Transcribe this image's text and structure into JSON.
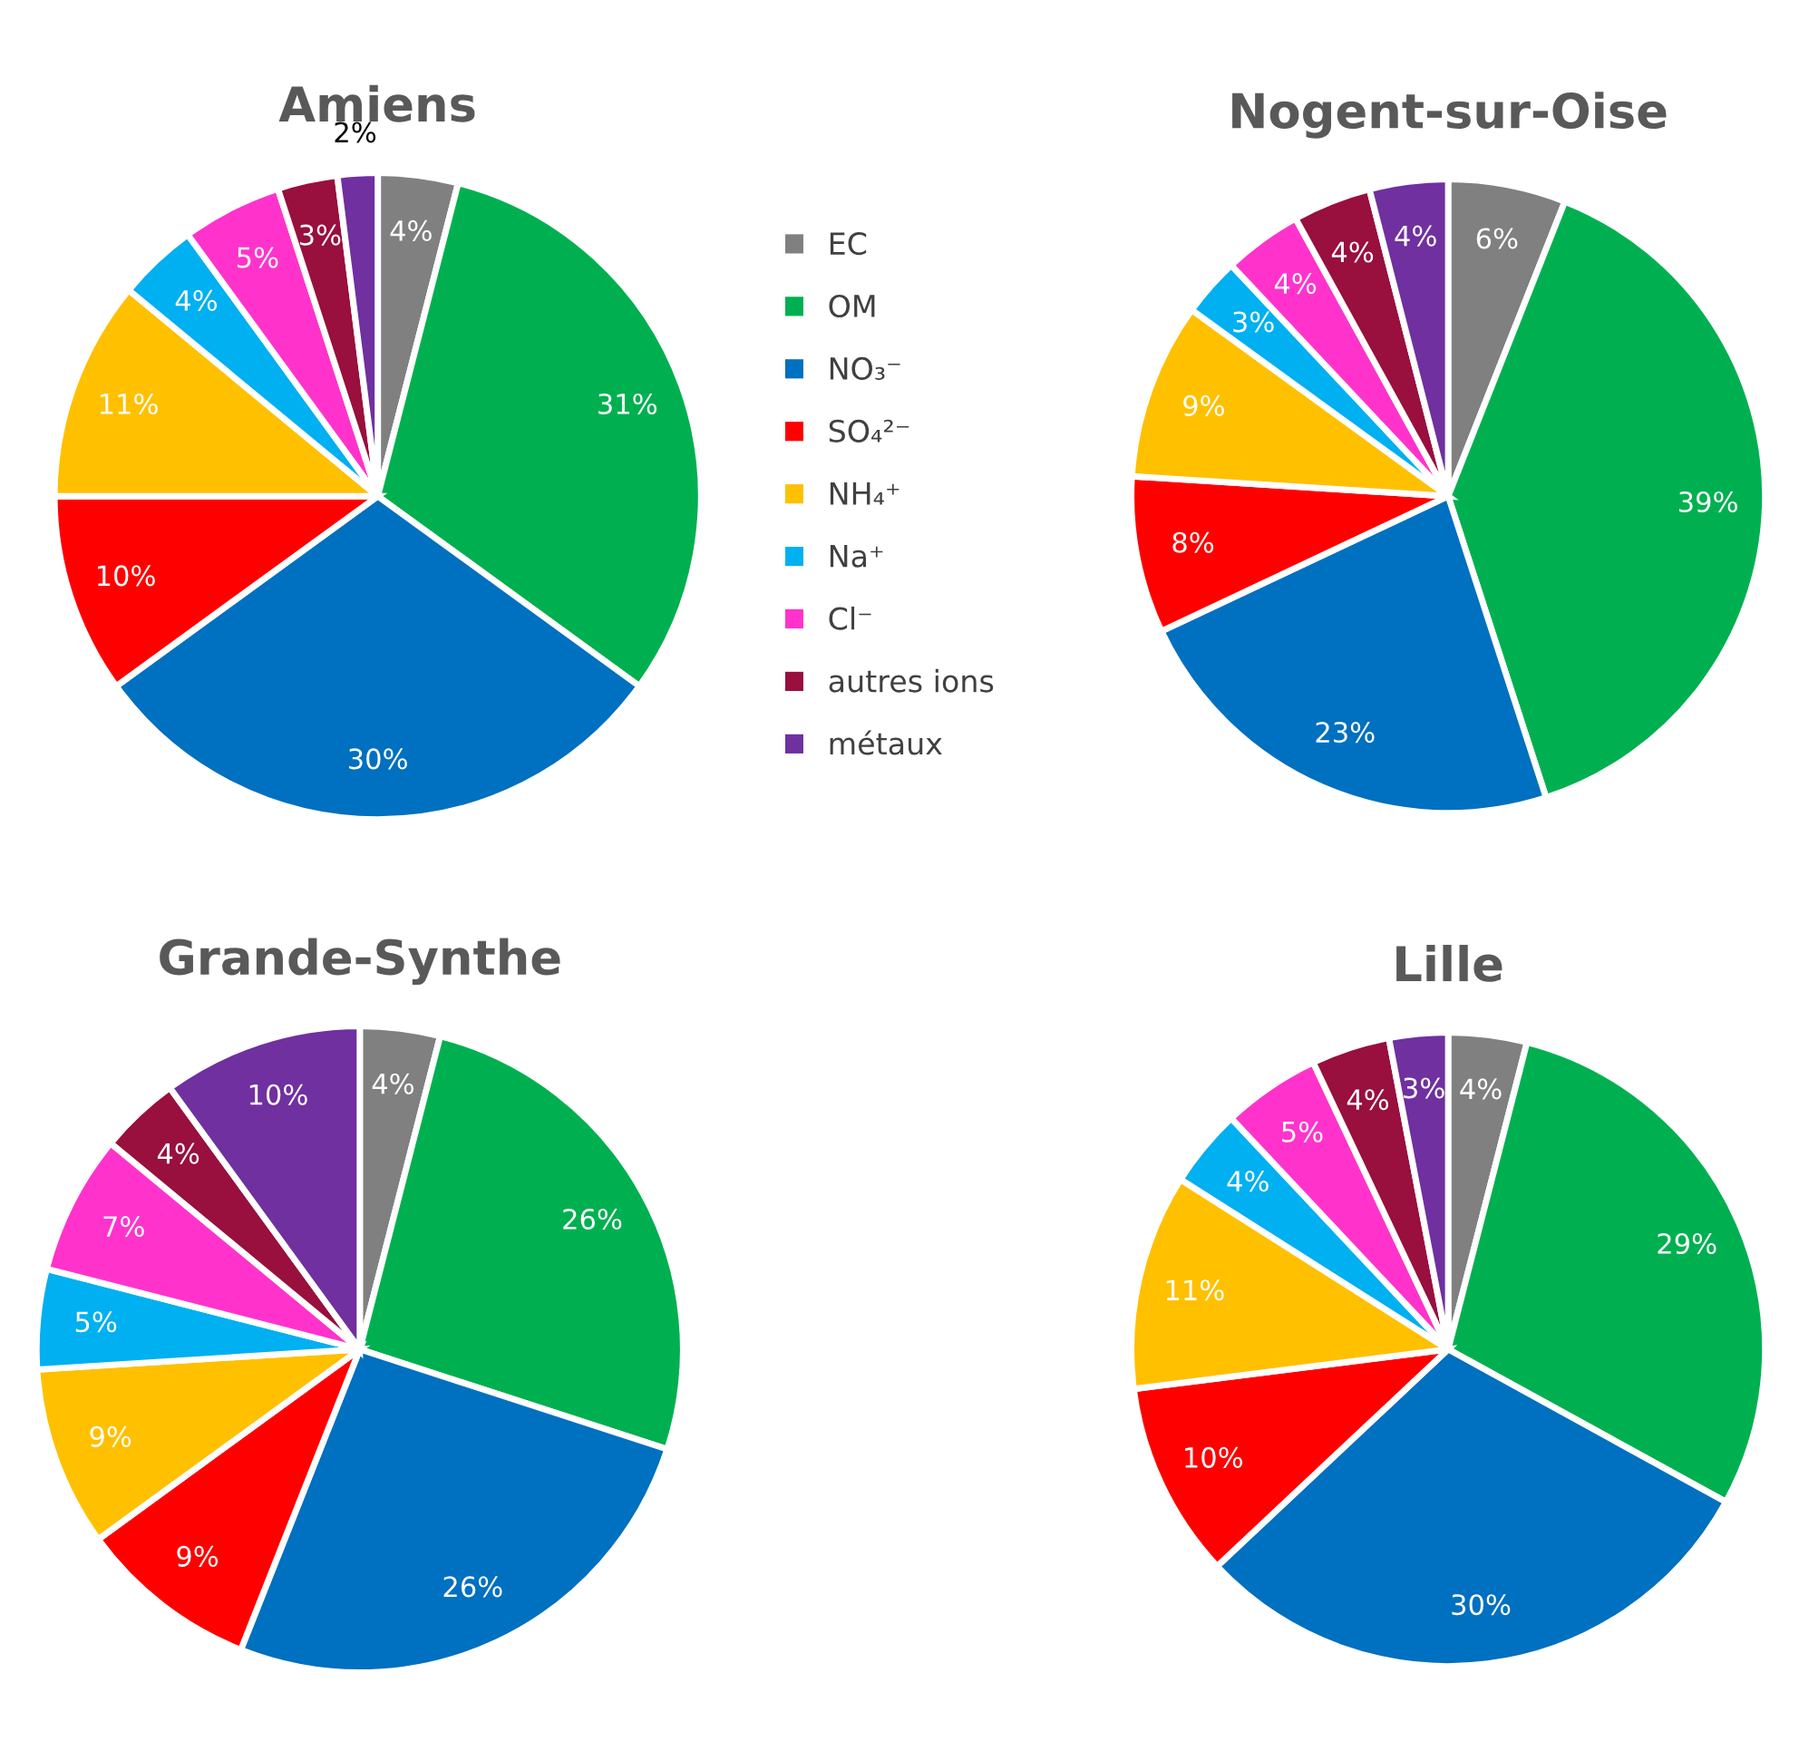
{
  "chart_data": [
    {
      "type": "pie",
      "title": "Amiens",
      "categories": [
        "EC",
        "OM",
        "NO₃⁻",
        "SO₄²⁻",
        "NH₄⁺",
        "Na⁺",
        "Cl⁻",
        "autres ions",
        "métaux"
      ],
      "values": [
        4,
        31,
        30,
        10,
        11,
        4,
        5,
        3,
        2
      ],
      "value_labels": [
        "4%",
        "31%",
        "30%",
        "10%",
        "11%",
        "4%",
        "5%",
        "3%",
        "2%"
      ],
      "colors": [
        "#808080",
        "#00b050",
        "#0070c0",
        "#ff0000",
        "#ffc000",
        "#00b0f0",
        "#ff33cc",
        "#990f3d",
        "#7030a0"
      ],
      "legend": "right"
    },
    {
      "type": "pie",
      "title": "Nogent-sur-Oise",
      "values": [
        6,
        39,
        23,
        8,
        9,
        3,
        4,
        4,
        4
      ],
      "value_labels": [
        "6%",
        "39%",
        "23%",
        "8%",
        "9%",
        "3%",
        "4%",
        "4%",
        "4%"
      ],
      "colors": [
        "#808080",
        "#00b050",
        "#0070c0",
        "#ff0000",
        "#ffc000",
        "#00b0f0",
        "#ff33cc",
        "#990f3d",
        "#7030a0"
      ]
    },
    {
      "type": "pie",
      "title": "Grande-Synthe",
      "values": [
        4,
        26,
        26,
        9,
        9,
        5,
        7,
        4,
        10
      ],
      "value_labels": [
        "4%",
        "26%",
        "26%",
        "9%",
        "9%",
        "5%",
        "7%",
        "4%",
        "10%"
      ],
      "colors": [
        "#808080",
        "#00b050",
        "#0070c0",
        "#ff0000",
        "#ffc000",
        "#00b0f0",
        "#ff33cc",
        "#990f3d",
        "#7030a0"
      ]
    },
    {
      "type": "pie",
      "title": "Lille",
      "values": [
        4,
        29,
        30,
        10,
        11,
        4,
        5,
        4,
        3
      ],
      "value_labels": [
        "4%",
        "29%",
        "30%",
        "10%",
        "11%",
        "4%",
        "5%",
        "4%",
        "3%"
      ],
      "colors": [
        "#808080",
        "#00b050",
        "#0070c0",
        "#ff0000",
        "#ffc000",
        "#00b0f0",
        "#ff33cc",
        "#990f3d",
        "#7030a0"
      ]
    }
  ]
}
